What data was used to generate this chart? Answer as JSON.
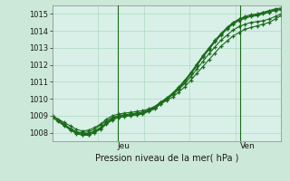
{
  "title": "Pression niveau de la mer( hPa )",
  "background_color": "#cce8d8",
  "plot_bg_color": "#d8f0e8",
  "grid_color": "#b0d8c0",
  "line_color": "#1a6b1a",
  "vline_color": "#1a6b1a",
  "ylim": [
    1007.5,
    1015.5
  ],
  "yticks": [
    1008,
    1009,
    1010,
    1011,
    1012,
    1013,
    1014,
    1015
  ],
  "x_day_labels": [
    [
      "Jeu",
      0.285
    ],
    [
      "Ven",
      0.82
    ]
  ],
  "vlines_x": [
    0.285,
    0.82
  ],
  "series": [
    [
      1008.9,
      1008.65,
      1008.4,
      1008.2,
      1008.05,
      1008.0,
      1008.05,
      1008.2,
      1008.45,
      1008.7,
      1008.9,
      1009.0,
      1009.05,
      1009.1,
      1009.15,
      1009.2,
      1009.3,
      1009.5,
      1009.7,
      1009.9,
      1010.1,
      1010.4,
      1010.7,
      1011.1,
      1011.5,
      1011.9,
      1012.3,
      1012.7,
      1013.1,
      1013.4,
      1013.7,
      1013.9,
      1014.1,
      1014.2,
      1014.3,
      1014.4,
      1014.5,
      1014.7,
      1014.9
    ],
    [
      1009.0,
      1008.8,
      1008.6,
      1008.4,
      1008.2,
      1008.1,
      1008.15,
      1008.3,
      1008.5,
      1008.8,
      1009.0,
      1009.1,
      1009.15,
      1009.2,
      1009.25,
      1009.3,
      1009.4,
      1009.55,
      1009.8,
      1010.0,
      1010.25,
      1010.55,
      1010.9,
      1011.3,
      1011.75,
      1012.2,
      1012.65,
      1013.05,
      1013.45,
      1013.75,
      1014.05,
      1014.25,
      1014.4,
      1014.5,
      1014.55,
      1014.6,
      1014.7,
      1014.85,
      1015.0
    ],
    [
      1009.0,
      1008.75,
      1008.5,
      1008.25,
      1008.05,
      1007.95,
      1007.95,
      1008.1,
      1008.3,
      1008.6,
      1008.85,
      1009.0,
      1009.05,
      1009.1,
      1009.15,
      1009.2,
      1009.35,
      1009.5,
      1009.8,
      1010.05,
      1010.35,
      1010.7,
      1011.1,
      1011.55,
      1012.05,
      1012.55,
      1013.0,
      1013.45,
      1013.85,
      1014.2,
      1014.5,
      1014.7,
      1014.85,
      1014.95,
      1015.0,
      1015.1,
      1015.2,
      1015.3,
      1015.35
    ],
    [
      1009.0,
      1008.75,
      1008.45,
      1008.2,
      1008.0,
      1007.9,
      1007.9,
      1008.05,
      1008.25,
      1008.55,
      1008.8,
      1008.95,
      1009.0,
      1009.05,
      1009.1,
      1009.15,
      1009.3,
      1009.45,
      1009.75,
      1010.0,
      1010.3,
      1010.65,
      1011.05,
      1011.5,
      1012.0,
      1012.5,
      1012.95,
      1013.4,
      1013.8,
      1014.15,
      1014.45,
      1014.65,
      1014.8,
      1014.9,
      1014.95,
      1015.05,
      1015.15,
      1015.25,
      1015.3
    ],
    [
      1009.0,
      1008.75,
      1008.45,
      1008.15,
      1007.95,
      1007.85,
      1007.85,
      1008.0,
      1008.2,
      1008.5,
      1008.75,
      1008.9,
      1008.95,
      1009.0,
      1009.05,
      1009.1,
      1009.25,
      1009.4,
      1009.7,
      1009.95,
      1010.25,
      1010.6,
      1011.0,
      1011.45,
      1011.95,
      1012.45,
      1012.9,
      1013.35,
      1013.75,
      1014.1,
      1014.4,
      1014.6,
      1014.75,
      1014.85,
      1014.9,
      1015.0,
      1015.1,
      1015.2,
      1015.25
    ]
  ],
  "n_points": 39,
  "tick_fontsize": 6,
  "label_fontsize": 7,
  "day_label_fontsize": 6.5
}
